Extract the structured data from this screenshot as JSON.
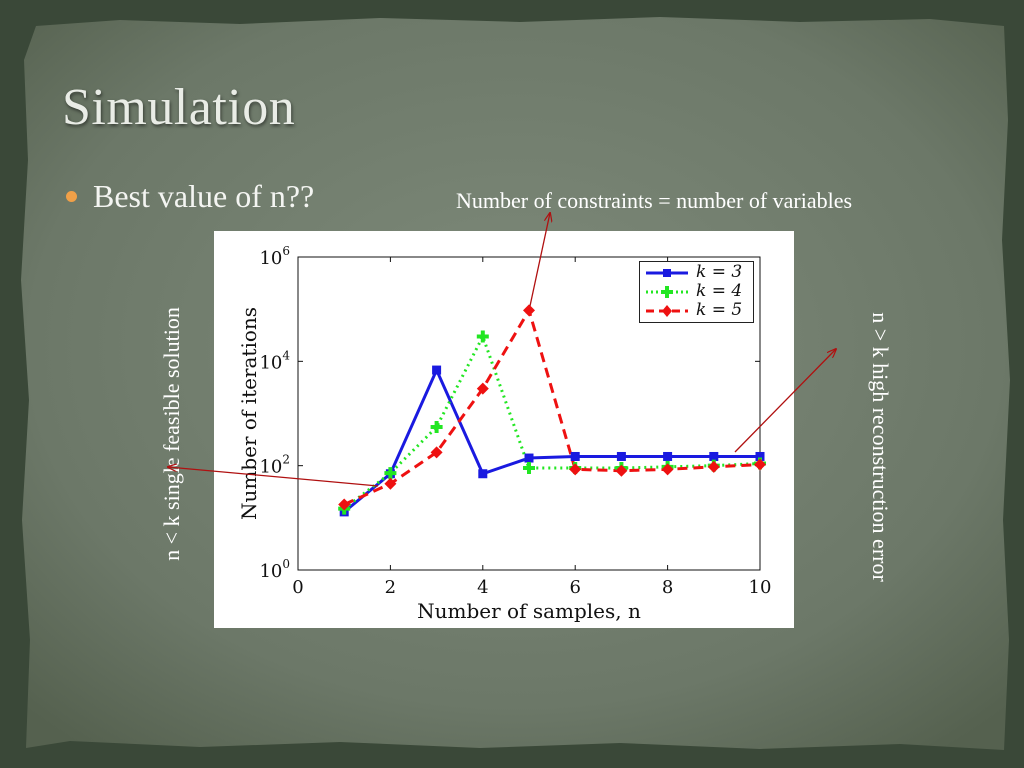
{
  "slide": {
    "title": "Simulation",
    "bullet": "Best value of n??",
    "annotations": {
      "top": "Number of constraints = number of variables",
      "left": "n < k single feasible solution",
      "right": "n > k high reconstruction error"
    },
    "colors": {
      "bullet": "#f0a048",
      "arrow": "#b01010",
      "text": "#ffffff"
    }
  },
  "chart_data": {
    "type": "line",
    "xlabel": "Number of samples, n",
    "ylabel": "Number of iterations",
    "xlim": [
      0,
      10
    ],
    "ylim": [
      1,
      1000000
    ],
    "yscale": "log",
    "xticks": [
      "0",
      "2",
      "4",
      "6",
      "8",
      "10"
    ],
    "yticks": [
      {
        "base": "10",
        "exp": "0"
      },
      {
        "base": "10",
        "exp": "2"
      },
      {
        "base": "10",
        "exp": "4"
      },
      {
        "base": "10",
        "exp": "6"
      }
    ],
    "legend_position": "top-right",
    "series": [
      {
        "name": "k = 3",
        "color": "#1a1ae0",
        "style": "solid",
        "marker": "square",
        "x": [
          1,
          2,
          3,
          4,
          5,
          6,
          7,
          8,
          9,
          10
        ],
        "y": [
          13,
          70,
          6800,
          70,
          140,
          150,
          150,
          150,
          150,
          150
        ]
      },
      {
        "name": "k = 4",
        "color": "#22e622",
        "style": "dotted",
        "marker": "plus",
        "x": [
          1,
          2,
          3,
          4,
          5,
          6,
          7,
          8,
          9,
          10
        ],
        "y": [
          15,
          72,
          550,
          30000,
          90,
          90,
          90,
          95,
          100,
          110
        ]
      },
      {
        "name": "k = 5",
        "color": "#ee1111",
        "style": "dashed",
        "marker": "diamond",
        "x": [
          1,
          2,
          3,
          4,
          5,
          6,
          7,
          8,
          9,
          10
        ],
        "y": [
          18,
          45,
          180,
          3000,
          95000,
          85,
          80,
          85,
          95,
          105
        ]
      }
    ]
  }
}
